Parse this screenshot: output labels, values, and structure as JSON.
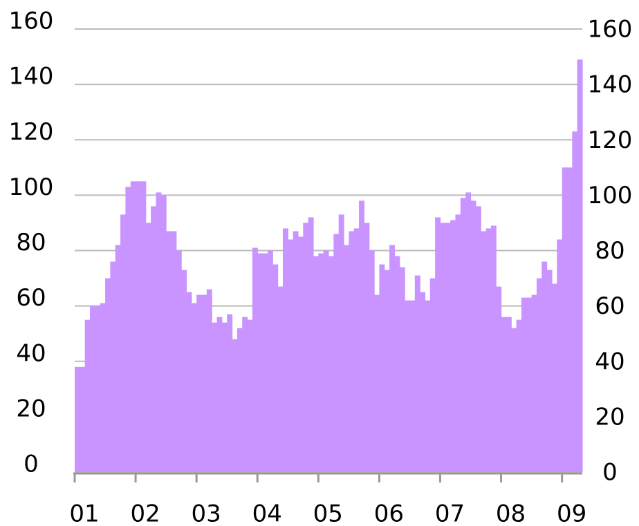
{
  "chart_data": {
    "type": "bar",
    "categories": [
      "01",
      null,
      null,
      null,
      null,
      null,
      null,
      null,
      null,
      null,
      null,
      null,
      "02",
      null,
      null,
      null,
      null,
      null,
      null,
      null,
      null,
      null,
      null,
      null,
      "03",
      null,
      null,
      null,
      null,
      null,
      null,
      null,
      null,
      null,
      null,
      null,
      "04",
      null,
      null,
      null,
      null,
      null,
      null,
      null,
      null,
      null,
      null,
      null,
      "05",
      null,
      null,
      null,
      null,
      null,
      null,
      null,
      null,
      null,
      null,
      null,
      "06",
      null,
      null,
      null,
      null,
      null,
      null,
      null,
      null,
      null,
      null,
      null,
      "07",
      null,
      null,
      null,
      null,
      null,
      null,
      null,
      null,
      null,
      null,
      null,
      "08",
      null,
      null,
      null,
      null,
      null,
      null,
      null,
      null,
      null,
      null,
      null,
      "09",
      null,
      null,
      null
    ],
    "values": [
      38,
      38,
      55,
      60,
      60,
      61,
      70,
      76,
      82,
      93,
      103,
      105,
      105,
      105,
      90,
      96,
      101,
      100,
      87,
      87,
      80,
      73,
      65,
      61,
      64,
      64,
      66,
      54,
      56,
      54,
      57,
      48,
      52,
      56,
      55,
      81,
      79,
      79,
      80,
      75,
      67,
      88,
      84,
      87,
      85,
      90,
      92,
      78,
      79,
      80,
      78,
      86,
      93,
      82,
      87,
      88,
      98,
      90,
      80,
      64,
      75,
      73,
      82,
      78,
      74,
      62,
      62,
      71,
      65,
      62,
      70,
      92,
      90,
      90,
      91,
      93,
      99,
      101,
      98,
      96,
      87,
      88,
      89,
      67,
      56,
      56,
      52,
      55,
      63,
      63,
      64,
      70,
      76,
      73,
      68,
      84,
      110,
      110,
      123,
      149
    ],
    "color": "#c994ff",
    "ylim": [
      0,
      160
    ],
    "yticks": [
      0,
      20,
      40,
      60,
      80,
      100,
      120,
      140,
      160
    ],
    "y2lim": [
      0,
      160
    ],
    "y2ticks": [
      0,
      20,
      40,
      60,
      80,
      100,
      120,
      140,
      160
    ],
    "grid": true
  }
}
